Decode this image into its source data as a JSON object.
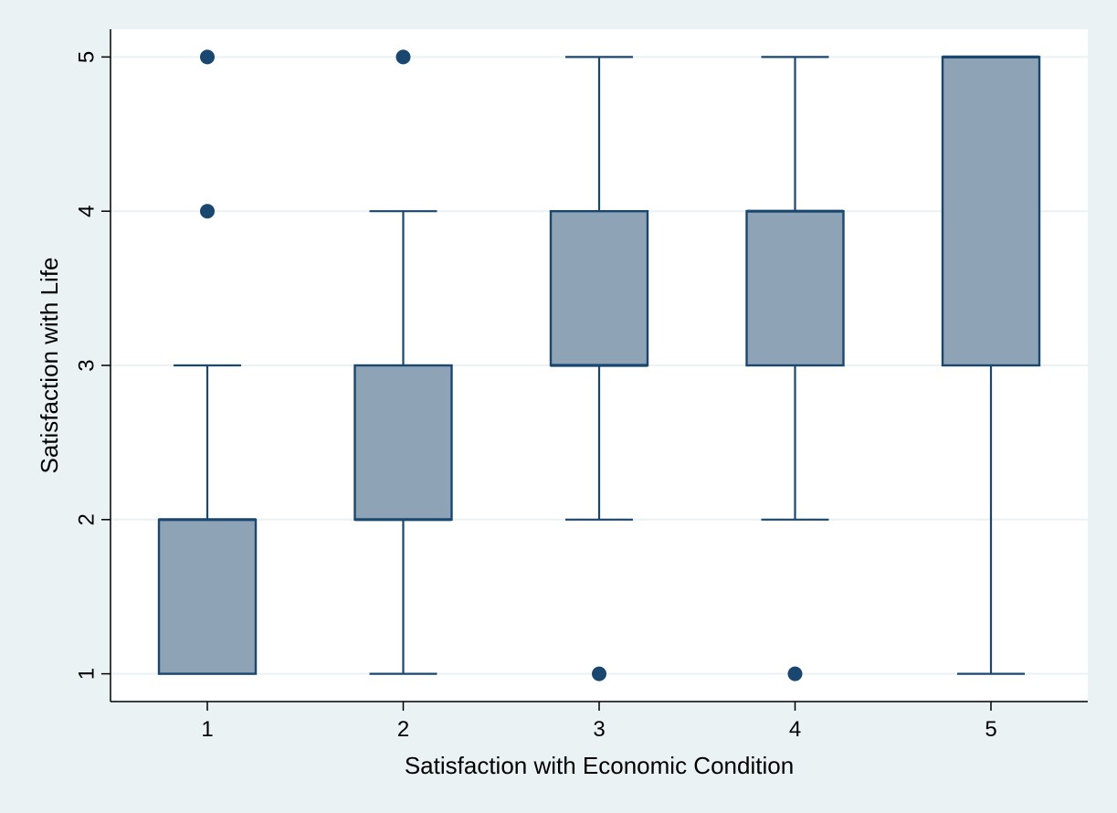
{
  "chart_data": {
    "type": "box",
    "xlabel": "Satisfaction with Economic Condition",
    "ylabel": "Satisfaction with Life",
    "ylim": [
      0.82,
      5.18
    ],
    "yticks": [
      "1",
      "2",
      "3",
      "4",
      "5"
    ],
    "categories": [
      "1",
      "2",
      "3",
      "4",
      "5"
    ],
    "boxes": [
      {
        "category": "1",
        "whisker_low": 1,
        "q1": 1,
        "median": 2,
        "q3": 2,
        "whisker_high": 3,
        "outliers": [
          4,
          5
        ]
      },
      {
        "category": "2",
        "whisker_low": 1,
        "q1": 2,
        "median": 2,
        "q3": 3,
        "whisker_high": 4,
        "outliers": [
          5
        ]
      },
      {
        "category": "3",
        "whisker_low": 2,
        "q1": 3,
        "median": 3,
        "q3": 4,
        "whisker_high": 5,
        "outliers": [
          1
        ]
      },
      {
        "category": "4",
        "whisker_low": 2,
        "q1": 3,
        "median": 4,
        "q3": 4,
        "whisker_high": 5,
        "outliers": [
          1
        ]
      },
      {
        "category": "5",
        "whisker_low": 1,
        "q1": 3,
        "median": 5,
        "q3": 5,
        "whisker_high": 5,
        "outliers": []
      }
    ],
    "grid": true,
    "colors": {
      "box_fill": "#8ea3b6",
      "stroke": "#1a476f",
      "grid": "#eaf2f3",
      "plot_bg": "#ffffff",
      "page_bg": "#eaf2f3"
    }
  }
}
